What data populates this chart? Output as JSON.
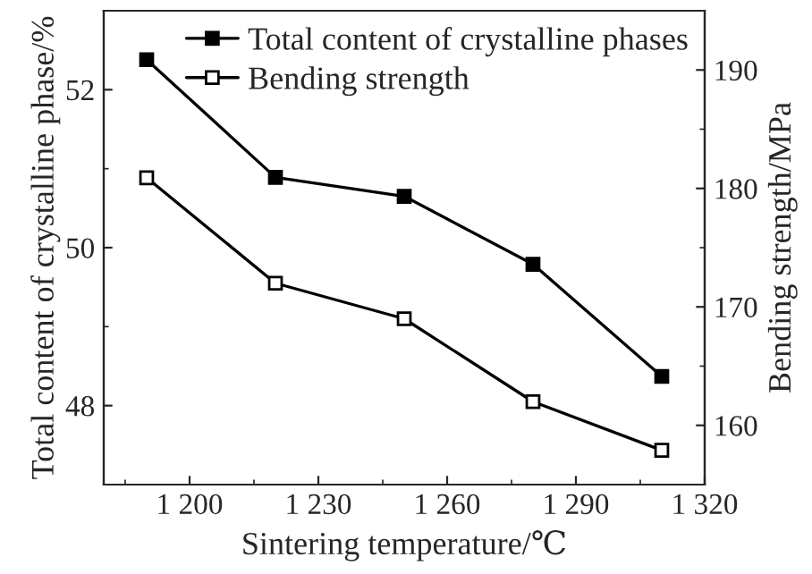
{
  "chart_data": {
    "type": "line",
    "xlabel": "Sintering temperature/℃",
    "ylabel": "Total content of crystalline phase/%",
    "y2label": "Bending strength/MPa",
    "x": [
      1190,
      1220,
      1250,
      1280,
      1310
    ],
    "series": [
      {
        "name": "Total content of crystalline phases",
        "color": "#000000",
        "marker": "square",
        "values": [
          52.38,
          50.89,
          50.65,
          49.79,
          48.37
        ]
      },
      {
        "name": "Bending strength",
        "color": "#000000",
        "marker": "square",
        "axis": "y2",
        "values": [
          180.9,
          172.0,
          169.0,
          162.0,
          157.9
        ]
      }
    ],
    "xlim": [
      1180,
      1320
    ],
    "xticks": [
      {
        "value": 1200,
        "label": "1 200"
      },
      {
        "value": 1230,
        "label": "1 230"
      },
      {
        "value": 1260,
        "label": "1 260"
      },
      {
        "value": 1290,
        "label": "1 290"
      },
      {
        "value": 1320,
        "label": "1 320"
      }
    ],
    "ylim": [
      47,
      53
    ],
    "yticks": [
      48,
      50,
      52
    ],
    "y2lim": [
      155,
      195
    ],
    "y2ticks": [
      160,
      170,
      180,
      190
    ],
    "legend": "top right",
    "grid": false,
    "line_style": "solid"
  }
}
